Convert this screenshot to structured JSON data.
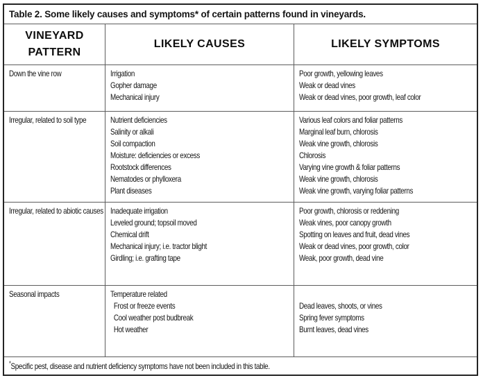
{
  "title": "Table 2. Some likely causes and symptoms* of certain patterns found in vineyards.",
  "columns": [
    "VINEYARD PATTERN",
    "LIKELY CAUSES",
    "LIKELY SYMPTOMS"
  ],
  "rows": [
    {
      "pattern": "Down the vine row",
      "causes": [
        "Irrigation",
        "Gopher damage",
        "Mechanical injury"
      ],
      "symptoms": [
        "Poor growth, yellowing leaves",
        "Weak or dead vines",
        "Weak or dead vines, poor growth, leaf color"
      ]
    },
    {
      "pattern": "Irregular, related to soil type",
      "causes": [
        "Nutrient deficiencies",
        "Salinity or alkali",
        "Soil compaction",
        "Moisture: deficiencies or excess",
        "Rootstock differences",
        "Nematodes or phylloxera",
        "Plant diseases"
      ],
      "symptoms": [
        "Various leaf colors and foliar patterns",
        "Marginal leaf burn, chlorosis",
        "Weak vine growth, chlorosis",
        "Chlorosis",
        "Varying vine growth & foliar patterns",
        "Weak vine growth, chlorosis",
        "Weak vine growth, varying foliar patterns"
      ]
    },
    {
      "pattern": "Irregular, related to abiotic causes",
      "causes": [
        "Inadequate irrigation",
        "Leveled ground; topsoil moved",
        "Chemical drift",
        "Mechanical injury; i.e. tractor blight",
        "Girdling; i.e. grafting tape"
      ],
      "symptoms": [
        "Poor growth, chlorosis or reddening",
        "Weak vines, poor canopy growth",
        "Spotting on leaves and fruit, dead vines",
        "Weak or dead vines, poor growth, color",
        "Weak, poor growth, dead vine"
      ]
    },
    {
      "pattern": "Seasonal impacts",
      "causes": [
        "Temperature related",
        "  Frost or freeze events",
        "  Cool weather post budbreak",
        "  Hot weather"
      ],
      "symptoms": [
        "",
        "Dead leaves, shoots, or vines",
        "Spring fever symptoms",
        "Burnt leaves, dead vines"
      ]
    }
  ],
  "footnote": {
    "asterisk": "*",
    "text": "Specific pest, disease and nutrient deficiency symptoms have not been included in this table."
  }
}
